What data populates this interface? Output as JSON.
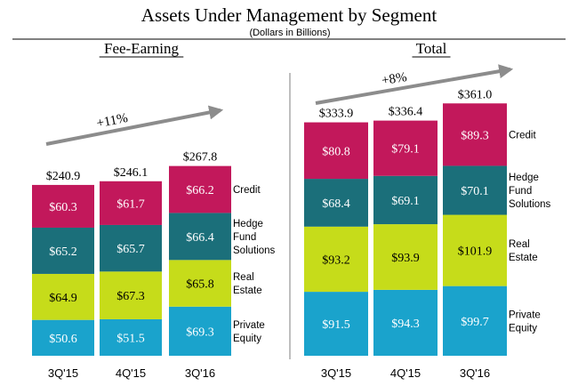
{
  "title": "Assets Under Management by Segment",
  "subtitle": "(Dollars in Billions)",
  "colors": {
    "credit": "#c2185b",
    "hedge_fund_solutions": "#1b6f7a",
    "real_estate": "#c6dc1a",
    "private_equity": "#1aa3cc",
    "arrow": "#8c8c8c",
    "divider": "#7f7f7f"
  },
  "segment_labels": {
    "credit": [
      "Credit"
    ],
    "hedge_fund_solutions": [
      "Hedge",
      "Fund",
      "Solutions"
    ],
    "real_estate": [
      "Real",
      "Estate"
    ],
    "private_equity": [
      "Private",
      "Equity"
    ]
  },
  "chart_data": [
    {
      "type": "bar",
      "stacked": true,
      "title": "Fee-Earning",
      "growth_label": "+11%",
      "categories": [
        "3Q'15",
        "4Q'15",
        "3Q'16"
      ],
      "totals": [
        "$240.9",
        "$246.1",
        "$267.8"
      ],
      "series": [
        {
          "name": "Private Equity",
          "key": "private_equity",
          "values": [
            50.6,
            51.5,
            69.3
          ],
          "labels": [
            "$50.6",
            "$51.5",
            "$69.3"
          ]
        },
        {
          "name": "Real Estate",
          "key": "real_estate",
          "values": [
            64.9,
            67.3,
            65.8
          ],
          "labels": [
            "$64.9",
            "$67.3",
            "$65.8"
          ]
        },
        {
          "name": "Hedge Fund Solutions",
          "key": "hedge_fund_solutions",
          "values": [
            65.2,
            65.7,
            66.4
          ],
          "labels": [
            "$65.2",
            "$65.7",
            "$66.4"
          ]
        },
        {
          "name": "Credit",
          "key": "credit",
          "values": [
            60.3,
            61.7,
            66.2
          ],
          "labels": [
            "$60.3",
            "$61.7",
            "$66.2"
          ]
        }
      ]
    },
    {
      "type": "bar",
      "stacked": true,
      "title": "Total",
      "growth_label": "+8%",
      "categories": [
        "3Q'15",
        "4Q'15",
        "3Q'16"
      ],
      "totals": [
        "$333.9",
        "$336.4",
        "$361.0"
      ],
      "series": [
        {
          "name": "Private Equity",
          "key": "private_equity",
          "values": [
            91.5,
            94.3,
            99.7
          ],
          "labels": [
            "$91.5",
            "$94.3",
            "$99.7"
          ]
        },
        {
          "name": "Real Estate",
          "key": "real_estate",
          "values": [
            93.2,
            93.9,
            101.9
          ],
          "labels": [
            "$93.2",
            "$93.9",
            "$101.9"
          ]
        },
        {
          "name": "Hedge Fund Solutions",
          "key": "hedge_fund_solutions",
          "values": [
            68.4,
            69.1,
            70.1
          ],
          "labels": [
            "$68.4",
            "$69.1",
            "$70.1"
          ]
        },
        {
          "name": "Credit",
          "key": "credit",
          "values": [
            80.8,
            79.1,
            89.3
          ],
          "labels": [
            "$80.8",
            "$79.1",
            "$89.3"
          ]
        }
      ]
    }
  ]
}
